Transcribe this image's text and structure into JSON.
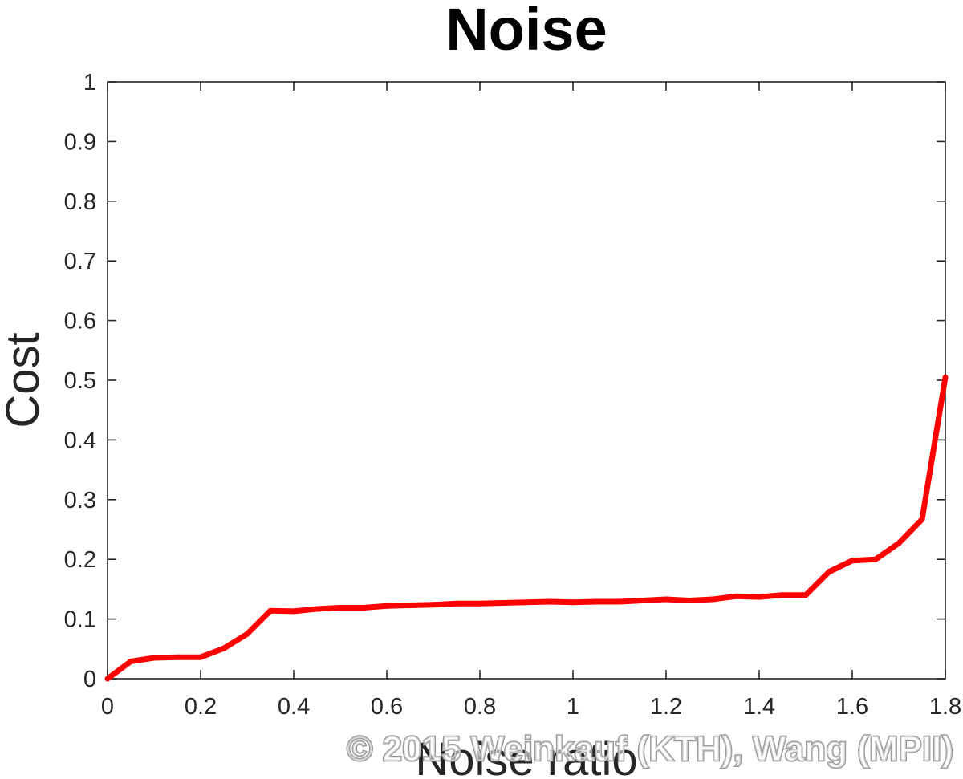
{
  "chart_data": {
    "type": "line",
    "title": "Noise",
    "xlabel": "Noise ratio",
    "ylabel": "Cost",
    "xlim": [
      0,
      1.8
    ],
    "ylim": [
      0,
      1
    ],
    "x_ticks": [
      "0",
      "0.2",
      "0.4",
      "0.6",
      "0.8",
      "1",
      "1.2",
      "1.4",
      "1.6",
      "1.8"
    ],
    "y_ticks": [
      "0",
      "0.1",
      "0.2",
      "0.3",
      "0.4",
      "0.5",
      "0.6",
      "0.7",
      "0.8",
      "0.9",
      "1"
    ],
    "grid": false,
    "box": true,
    "series": [
      {
        "color": "#ff0000",
        "x": [
          0,
          0.05,
          0.1,
          0.15,
          0.2,
          0.25,
          0.3,
          0.35,
          0.4,
          0.45,
          0.5,
          0.55,
          0.6,
          0.65,
          0.7,
          0.75,
          0.8,
          0.85,
          0.9,
          0.95,
          1.0,
          1.05,
          1.1,
          1.15,
          1.2,
          1.25,
          1.3,
          1.35,
          1.4,
          1.45,
          1.5,
          1.55,
          1.6,
          1.65,
          1.7,
          1.75,
          1.8
        ],
        "y": [
          0,
          0.029,
          0.035,
          0.036,
          0.036,
          0.051,
          0.075,
          0.114,
          0.113,
          0.117,
          0.119,
          0.119,
          0.122,
          0.123,
          0.124,
          0.126,
          0.126,
          0.127,
          0.128,
          0.129,
          0.128,
          0.129,
          0.129,
          0.131,
          0.133,
          0.131,
          0.133,
          0.138,
          0.137,
          0.14,
          0.14,
          0.179,
          0.198,
          0.2,
          0.227,
          0.267,
          0.505
        ]
      }
    ]
  },
  "watermark": "© 2015 Weinkauf (KTH), Wang (MPII)"
}
